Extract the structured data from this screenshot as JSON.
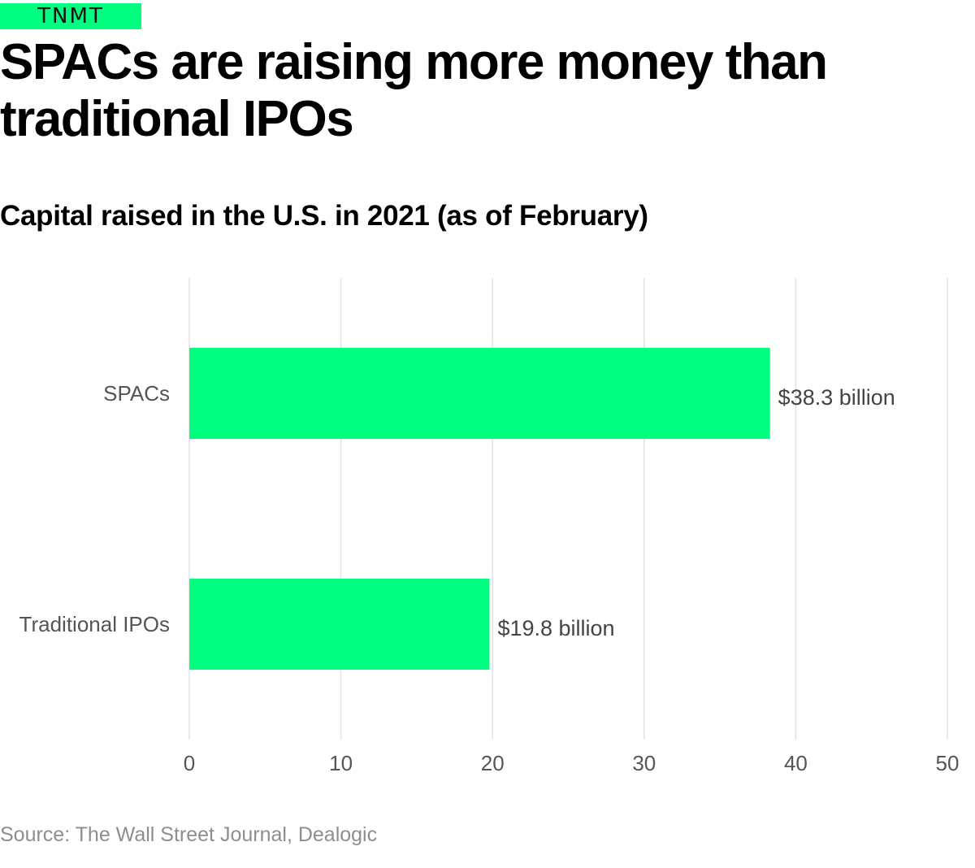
{
  "brand": {
    "logo_text": "TNMT",
    "accent_color": "#00ff80"
  },
  "title": "SPACs are raising more money than traditional IPOs",
  "subtitle": "Capital raised in the U.S. in 2021 (as of February)",
  "source": "Source: The Wall Street Journal, Dealogic",
  "chart_data": {
    "type": "bar",
    "orientation": "horizontal",
    "categories": [
      "SPACs",
      "Traditional IPOs"
    ],
    "values": [
      38.3,
      19.8
    ],
    "data_labels": [
      "$38.3 billion",
      "$19.8 billion"
    ],
    "xlim": [
      0,
      50
    ],
    "xticks": [
      0,
      10,
      20,
      30,
      40,
      50
    ],
    "xtick_labels": [
      "0",
      "10",
      "20",
      "30",
      "40",
      "50"
    ],
    "grid": true,
    "bar_color": "#00ff80",
    "grid_color": "#e2e2e2",
    "label_color": "#555555"
  }
}
